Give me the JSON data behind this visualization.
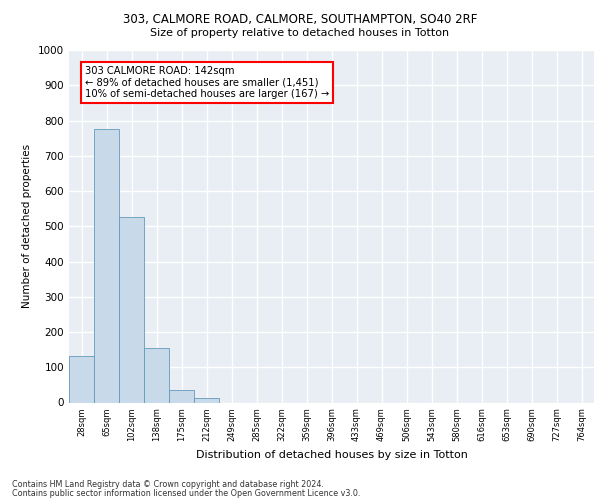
{
  "title_line1": "303, CALMORE ROAD, CALMORE, SOUTHAMPTON, SO40 2RF",
  "title_line2": "Size of property relative to detached houses in Totton",
  "xlabel": "Distribution of detached houses by size in Totton",
  "ylabel": "Number of detached properties",
  "bar_labels": [
    "28sqm",
    "65sqm",
    "102sqm",
    "138sqm",
    "175sqm",
    "212sqm",
    "249sqm",
    "285sqm",
    "322sqm",
    "359sqm",
    "396sqm",
    "433sqm",
    "469sqm",
    "506sqm",
    "543sqm",
    "580sqm",
    "616sqm",
    "653sqm",
    "690sqm",
    "727sqm",
    "764sqm"
  ],
  "bar_values": [
    133,
    775,
    525,
    155,
    36,
    14,
    0,
    0,
    0,
    0,
    0,
    0,
    0,
    0,
    0,
    0,
    0,
    0,
    0,
    0,
    0
  ],
  "bar_color": "#c8daea",
  "bar_edge_color": "#6699bb",
  "ylim": [
    0,
    1000
  ],
  "yticks": [
    0,
    100,
    200,
    300,
    400,
    500,
    600,
    700,
    800,
    900,
    1000
  ],
  "annotation_title": "303 CALMORE ROAD: 142sqm",
  "annotation_line2": "← 89% of detached houses are smaller (1,451)",
  "annotation_line3": "10% of semi-detached houses are larger (167) →",
  "footnote1": "Contains HM Land Registry data © Crown copyright and database right 2024.",
  "footnote2": "Contains public sector information licensed under the Open Government Licence v3.0.",
  "bg_color": "#e8eef4",
  "grid_color": "#ffffff"
}
